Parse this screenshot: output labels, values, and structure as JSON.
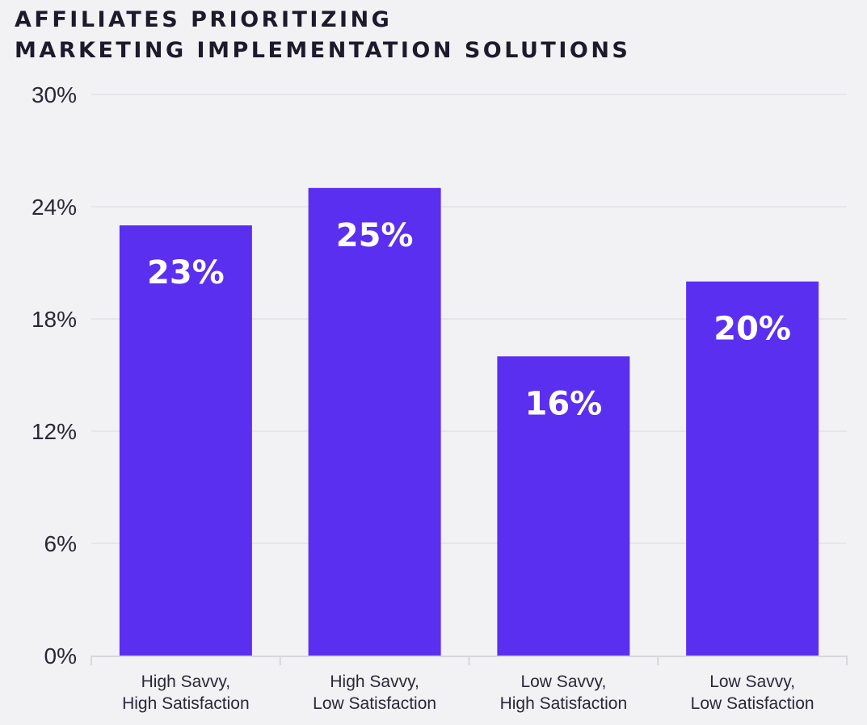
{
  "chart_data": {
    "type": "bar",
    "title": [
      "AFFILIATES PRIORITIZING",
      "MARKETING IMPLEMENTATION SOLUTIONS"
    ],
    "categories": [
      [
        "High Savvy,",
        "High Satisfaction"
      ],
      [
        "High Savvy,",
        "Low Satisfaction"
      ],
      [
        "Low Savvy,",
        "High Satisfaction"
      ],
      [
        "Low Savvy,",
        "Low Satisfaction"
      ]
    ],
    "values": [
      23,
      25,
      16,
      20
    ],
    "data_labels": [
      "23%",
      "25%",
      "16%",
      "20%"
    ],
    "yticks": [
      0,
      6,
      12,
      18,
      24,
      30
    ],
    "ytick_labels": [
      "0%",
      "6%",
      "12%",
      "18%",
      "24%",
      "30%"
    ],
    "ylim": [
      0,
      30
    ],
    "xlabel": "",
    "ylabel": "",
    "grid": true,
    "legend": "none",
    "colors": {
      "bar": "#5b2ff0",
      "label": "#ffffff",
      "grid": "#e2e2e6",
      "text": "#2a2838",
      "background": "#f2f2f4"
    }
  }
}
